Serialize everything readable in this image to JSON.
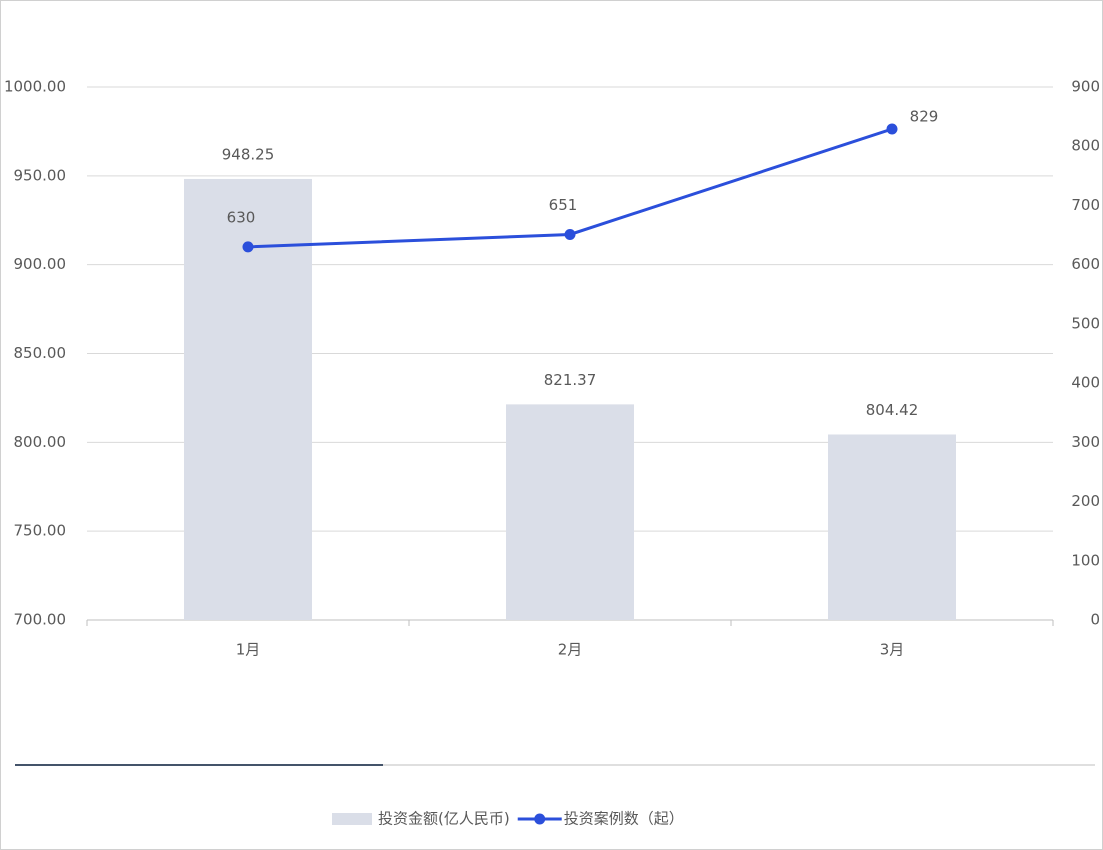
{
  "chart_data": {
    "type": "combo",
    "categories": [
      "1月",
      "2月",
      "3月"
    ],
    "series": [
      {
        "name": "投资金额(亿人民币)",
        "type": "bar",
        "color": "#dadee8",
        "values": [
          948.25,
          821.37,
          804.42
        ]
      },
      {
        "name": "投资案例数（起）",
        "type": "line",
        "axis": "y2",
        "color": "#2b4fdb",
        "values": [
          630,
          651,
          829
        ]
      }
    ],
    "ylim": [
      700,
      1000
    ],
    "yticks": [
      {
        "value": 700,
        "label": "700.00"
      },
      {
        "value": 750,
        "label": "750.00"
      },
      {
        "value": 800,
        "label": "800.00"
      },
      {
        "value": 850,
        "label": "850.00"
      },
      {
        "value": 900,
        "label": "900.00"
      },
      {
        "value": 950,
        "label": "950.00"
      },
      {
        "value": 1000,
        "label": "1000.00"
      }
    ],
    "y2lim": [
      0,
      900
    ],
    "y2ticks": [
      0,
      100,
      200,
      300,
      400,
      500,
      600,
      700,
      800,
      900
    ],
    "grid": true,
    "legend": "bottom"
  }
}
